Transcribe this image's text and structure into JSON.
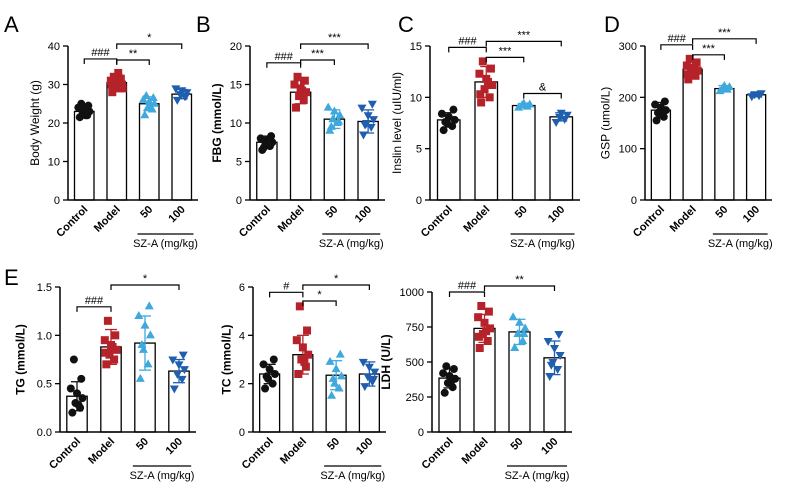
{
  "colors": {
    "control": "#111111",
    "model": "#b5222a",
    "sza50": "#3fa8dc",
    "sza100": "#1f5fae"
  },
  "chart_data": [
    {
      "type": "bar",
      "panel": "A",
      "ylabel": "Body Weight (g)",
      "ylim": [
        0,
        40
      ],
      "yticks": [
        0,
        10,
        20,
        30,
        40
      ],
      "ytick_labels": [
        "0",
        "10",
        "20",
        "30",
        "40"
      ],
      "categories": [
        "Control",
        "Model",
        "50",
        "100"
      ],
      "group_label": "SZ-A (mg/kg)",
      "means": [
        23,
        30.5,
        25,
        27.5
      ],
      "sd": [
        1.5,
        2,
        1.8,
        1.2
      ],
      "points": [
        [
          21.5,
          22,
          22.5,
          23,
          23.5,
          24,
          24.5,
          25,
          22
        ],
        [
          28,
          29,
          29.5,
          30,
          30.5,
          31,
          31.5,
          32,
          33,
          30,
          29
        ],
        [
          22,
          23.5,
          24,
          25,
          25.5,
          26,
          26.5,
          27,
          24
        ],
        [
          26,
          27,
          27.5,
          28,
          28.5,
          29,
          27
        ]
      ],
      "significance": [
        {
          "from": 0,
          "to": 1,
          "label": "###"
        },
        {
          "from": 1,
          "to": 2,
          "label": "**"
        },
        {
          "from": 1,
          "to": 3,
          "label": "*"
        }
      ]
    },
    {
      "type": "bar",
      "panel": "B",
      "ylabel": "FBG (mmol/L)",
      "ylim": [
        0,
        20
      ],
      "yticks": [
        0,
        5,
        10,
        15,
        20
      ],
      "ytick_labels": [
        "0",
        "5",
        "10",
        "15",
        "20"
      ],
      "categories": [
        "Control",
        "Model",
        "50",
        "100"
      ],
      "group_label": "SZ-A (mg/kg)",
      "means": [
        7.5,
        14,
        10.5,
        10.2
      ],
      "sd": [
        0.8,
        1.5,
        1.2,
        1.5
      ],
      "points": [
        [
          6.5,
          7,
          7.2,
          7.5,
          7.8,
          8,
          8.3,
          6.8,
          7.4
        ],
        [
          12,
          13,
          13.5,
          14,
          14.5,
          15,
          15.5,
          16,
          14.2
        ],
        [
          9,
          10,
          10.5,
          11,
          11.5,
          12,
          10.2,
          9.5
        ],
        [
          8.5,
          9.5,
          10,
          10.5,
          11,
          12,
          12.5,
          9.8
        ]
      ],
      "significance": [
        {
          "from": 0,
          "to": 1,
          "label": "###"
        },
        {
          "from": 1,
          "to": 2,
          "label": "***"
        },
        {
          "from": 1,
          "to": 3,
          "label": "***"
        }
      ]
    },
    {
      "type": "bar",
      "panel": "C",
      "ylabel": "Inslin level (uIU/ml)",
      "ylim": [
        0,
        15
      ],
      "yticks": [
        0,
        5,
        10,
        15
      ],
      "ytick_labels": [
        "0",
        "5",
        "10",
        "15"
      ],
      "categories": [
        "Control",
        "Model",
        "50",
        "100"
      ],
      "group_label": "SZ-A (mg/kg)",
      "means": [
        7.8,
        11.5,
        9.2,
        8.1
      ],
      "sd": [
        0.7,
        1.5,
        0.2,
        0.4
      ],
      "points": [
        [
          6.8,
          7.2,
          7.5,
          7.8,
          8.1,
          8.4,
          8.8,
          7.6
        ],
        [
          9.5,
          10,
          10.8,
          11.2,
          11.8,
          12.3,
          12.8,
          13.5,
          11.5,
          10.3
        ],
        [
          9,
          9.1,
          9.2,
          9.3,
          9.4
        ],
        [
          7.6,
          7.9,
          8.1,
          8.3,
          8.5
        ]
      ],
      "significance": [
        {
          "from": 0,
          "to": 1,
          "label": "###"
        },
        {
          "from": 1,
          "to": 2,
          "label": "***"
        },
        {
          "from": 1,
          "to": 3,
          "label": "***"
        },
        {
          "from": 2,
          "to": 3,
          "label": "&"
        }
      ]
    },
    {
      "type": "bar",
      "panel": "D",
      "ylabel": "GSP (umol/L)",
      "ylim": [
        0,
        300
      ],
      "yticks": [
        0,
        100,
        200,
        300
      ],
      "ytick_labels": [
        "0",
        "100",
        "200",
        "300"
      ],
      "categories": [
        "Control",
        "Model",
        "50",
        "100"
      ],
      "group_label": "SZ-A (mg/kg)",
      "means": [
        175,
        255,
        217,
        205
      ],
      "sd": [
        15,
        15,
        6,
        4
      ],
      "points": [
        [
          155,
          162,
          168,
          175,
          180,
          186,
          192,
          170
        ],
        [
          235,
          242,
          248,
          252,
          258,
          262,
          268,
          275,
          255,
          245
        ],
        [
          212,
          215,
          218,
          220,
          222
        ],
        [
          202,
          204,
          206,
          208
        ]
      ],
      "significance": [
        {
          "from": 0,
          "to": 1,
          "label": "###"
        },
        {
          "from": 1,
          "to": 2,
          "label": "***"
        },
        {
          "from": 1,
          "to": 3,
          "label": "***"
        }
      ]
    },
    {
      "type": "bar",
      "panel": "E",
      "ylabel": "TG (mmol/L)",
      "ylim": [
        0,
        1.5
      ],
      "yticks": [
        0,
        0.5,
        1.0,
        1.5
      ],
      "ytick_labels": [
        "0.0",
        "0.5",
        "1.0",
        "1.5"
      ],
      "categories": [
        "Control",
        "Model",
        "50",
        "100"
      ],
      "group_label": "SZ-A (mg/kg)",
      "means": [
        0.37,
        0.88,
        0.92,
        0.63
      ],
      "sd": [
        0.15,
        0.18,
        0.28,
        0.12
      ],
      "points": [
        [
          0.2,
          0.25,
          0.3,
          0.35,
          0.4,
          0.45,
          0.55,
          0.75,
          0.28
        ],
        [
          0.7,
          0.75,
          0.8,
          0.85,
          0.9,
          0.95,
          1.0,
          1.15,
          0.88,
          0.82
        ],
        [
          0.55,
          0.7,
          0.85,
          1.0,
          1.1,
          1.2,
          1.3,
          0.9
        ],
        [
          0.45,
          0.55,
          0.6,
          0.65,
          0.7,
          0.75,
          0.8
        ]
      ],
      "significance": [
        {
          "from": 0,
          "to": 1,
          "label": "###"
        },
        {
          "from": 1,
          "to": 3,
          "label": "*"
        }
      ]
    },
    {
      "type": "bar",
      "panel": "",
      "ylabel": "TC (mmol/L)",
      "ylim": [
        0,
        6
      ],
      "yticks": [
        0,
        2,
        4,
        6
      ],
      "ytick_labels": [
        "0",
        "2",
        "4",
        "6"
      ],
      "categories": [
        "Control",
        "Model",
        "50",
        "100"
      ],
      "group_label": "SZ-A (mg/kg)",
      "means": [
        2.4,
        3.2,
        2.35,
        2.4
      ],
      "sd": [
        0.4,
        0.8,
        0.6,
        0.5
      ],
      "points": [
        [
          1.8,
          2.0,
          2.2,
          2.4,
          2.6,
          2.8,
          3.0,
          2.3
        ],
        [
          2.4,
          2.7,
          3.0,
          3.2,
          3.5,
          3.8,
          4.2,
          5.2,
          2.9
        ],
        [
          1.5,
          1.8,
          2.0,
          2.3,
          2.6,
          2.9,
          3.2,
          2.2
        ],
        [
          1.9,
          2.1,
          2.3,
          2.5,
          2.7,
          2.9,
          2.2
        ]
      ],
      "significance": [
        {
          "from": 0,
          "to": 1,
          "label": "#"
        },
        {
          "from": 1,
          "to": 2,
          "label": "*"
        },
        {
          "from": 1,
          "to": 3,
          "label": "*"
        }
      ]
    },
    {
      "type": "bar",
      "panel": "",
      "ylabel": "LDH (U/L)",
      "ylim": [
        0,
        1000
      ],
      "yticks": [
        0,
        250,
        500,
        750,
        1000
      ],
      "ytick_labels": [
        "0",
        "250",
        "500",
        "750",
        "1000"
      ],
      "categories": [
        "Control",
        "Model",
        "50",
        "100"
      ],
      "group_label": "SZ-A (mg/kg)",
      "means": [
        385,
        740,
        715,
        530
      ],
      "sd": [
        70,
        100,
        90,
        120
      ],
      "points": [
        [
          280,
          320,
          350,
          380,
          400,
          420,
          450,
          470,
          360
        ],
        [
          600,
          650,
          700,
          740,
          780,
          820,
          860,
          900,
          720,
          680
        ],
        [
          600,
          650,
          700,
          740,
          780,
          820,
          700
        ],
        [
          400,
          450,
          500,
          550,
          600,
          650,
          700,
          480
        ]
      ],
      "significance": [
        {
          "from": 0,
          "to": 1,
          "label": "###"
        },
        {
          "from": 1,
          "to": 3,
          "label": "**"
        }
      ]
    }
  ]
}
